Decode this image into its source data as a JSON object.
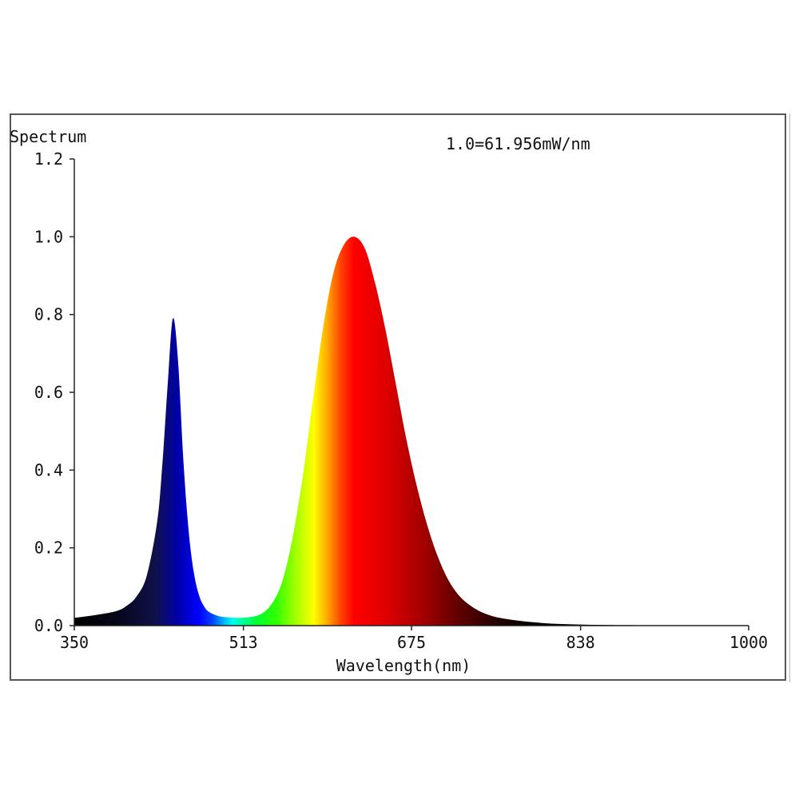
{
  "chart_data": {
    "type": "area",
    "title": "Spectrum",
    "annotation": "1.0=61.956mW/nm",
    "xlabel": "Wavelength(nm)",
    "ylabel": "",
    "xlim": [
      350,
      1000
    ],
    "ylim": [
      0,
      1.2
    ],
    "x_ticks": [
      "350",
      "513",
      "675",
      "838",
      "1000"
    ],
    "y_ticks": [
      "0.0",
      "0.2",
      "0.4",
      "0.6",
      "0.8",
      "1.0",
      "1.2"
    ],
    "grid": false,
    "series": [
      {
        "x": [
          350,
          370,
          390,
          400,
          410,
          420,
          430,
          435,
          440,
          445,
          450,
          455,
          460,
          465,
          470,
          475,
          480,
          490,
          500,
          510,
          520,
          530,
          540,
          550,
          560,
          570,
          580,
          590,
          600,
          610,
          620,
          630,
          640,
          650,
          660,
          670,
          680,
          690,
          700,
          710,
          720,
          730,
          740,
          750,
          760,
          780,
          800,
          820,
          850,
          900,
          950,
          1000
        ],
        "y": [
          0.02,
          0.027,
          0.037,
          0.05,
          0.075,
          0.13,
          0.27,
          0.42,
          0.62,
          0.79,
          0.68,
          0.43,
          0.25,
          0.14,
          0.08,
          0.05,
          0.035,
          0.024,
          0.021,
          0.02,
          0.022,
          0.03,
          0.055,
          0.11,
          0.22,
          0.38,
          0.58,
          0.77,
          0.91,
          0.98,
          1.0,
          0.97,
          0.88,
          0.76,
          0.62,
          0.48,
          0.36,
          0.26,
          0.18,
          0.12,
          0.08,
          0.055,
          0.038,
          0.027,
          0.02,
          0.012,
          0.007,
          0.004,
          0.002,
          0.001,
          0.0005,
          0.0
        ]
      }
    ]
  }
}
